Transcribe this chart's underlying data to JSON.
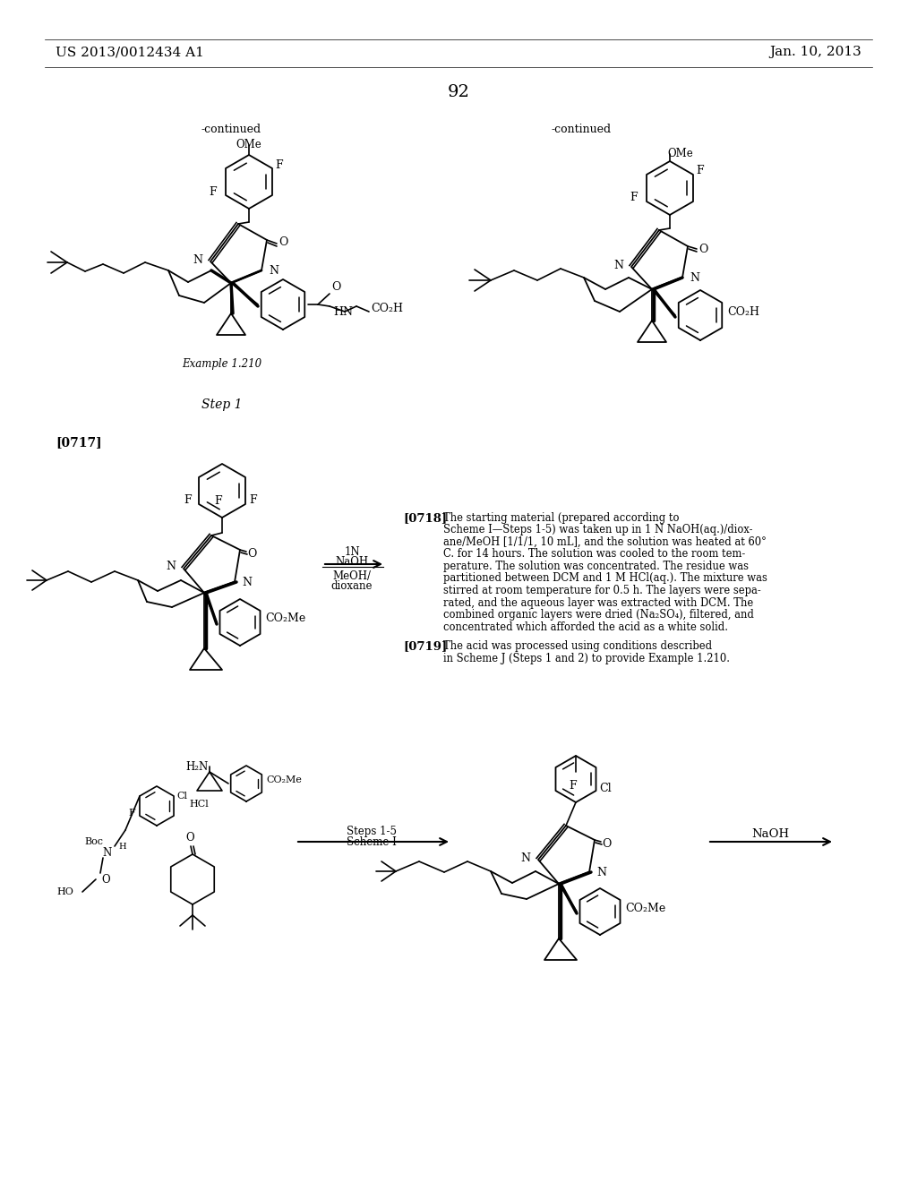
{
  "page_header_left": "US 2013/0012434 A1",
  "page_header_right": "Jan. 10, 2013",
  "page_number": "92",
  "bg": "#ffffff",
  "tc": "#000000",
  "continued_left": "-continued",
  "continued_right": "-continued",
  "example_label": "Example 1.210",
  "step_label": "Step 1",
  "para_0717": "[0717]",
  "arrow_1N": "1N",
  "arrow_NaOH": "NaOH",
  "arrow_MeOH": "MeOH/",
  "arrow_dioxane": "dioxane",
  "para_0718_lbl": "[0718]",
  "para_0718": "The starting material (prepared according to Scheme I—Steps 1-5) was taken up in 1 N NaOH(aq.)/dioxane/MeOH [1/1/1, 10 mL], and the solution was heated at 60° C. for 14 hours. The solution was cooled to the room temperature. The solution was concentrated. The residue was partitioned between DCM and 1 M HCl(aq.). The mixture was stirred at room temperature for 0.5 h. The layers were separated, and the aqueous layer was extracted with DCM. The combined organic layers were dried (Na2SO4), filtered, and concentrated which afforded the acid as a white solid.",
  "para_0719_lbl": "[0719]",
  "para_0719": "The acid was processed using conditions described in Scheme J (Steps 1 and 2) to provide Example 1.210.",
  "steps_lbl1": "Steps 1-5",
  "steps_lbl2": "Scheme I",
  "naoh_lbl": "NaOH",
  "fig_width": 10.24,
  "fig_height": 13.2
}
